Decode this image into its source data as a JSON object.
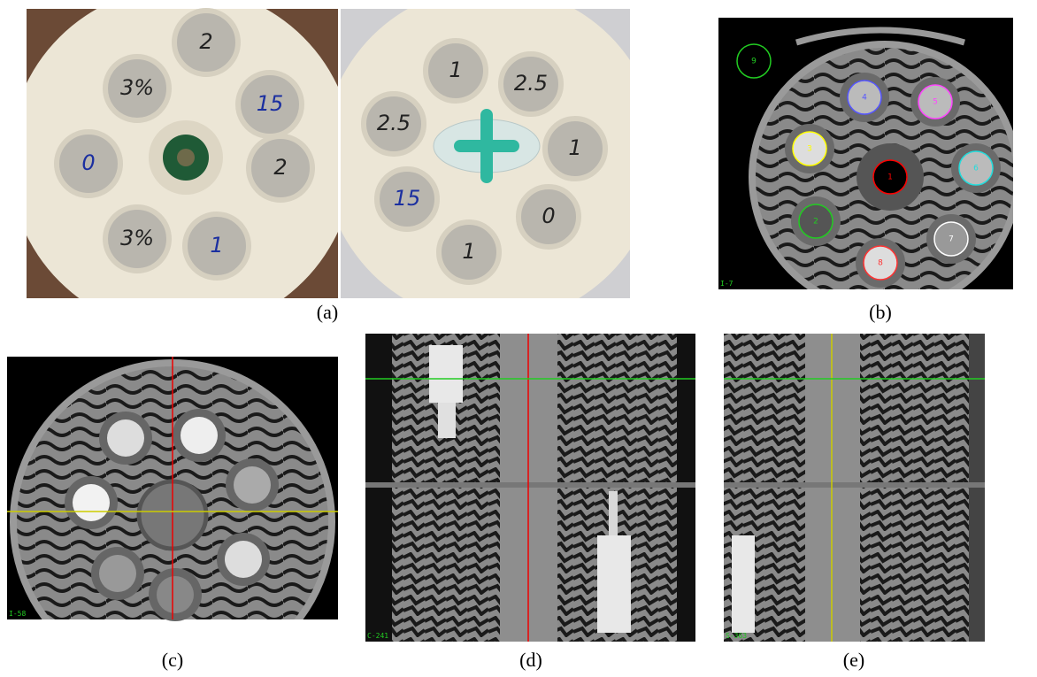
{
  "panels": {
    "a": {
      "caption": "(a)",
      "left_disk_labels": [
        "2",
        "15",
        "2",
        "1",
        "3%",
        "0",
        "3%"
      ],
      "right_disk_labels": [
        "1",
        "2.5",
        "1",
        "0",
        "1",
        "15",
        "2.5"
      ]
    },
    "b": {
      "caption": "(b)",
      "roi_labels": [
        "1",
        "2",
        "3",
        "4",
        "5",
        "6",
        "7",
        "8",
        "9"
      ],
      "corner": "I-7"
    },
    "c": {
      "caption": "(c)",
      "corner": "I-58"
    },
    "d": {
      "caption": "(d)",
      "corner": "C-241"
    },
    "e": {
      "caption": "(e)",
      "corner": "S-363"
    }
  }
}
